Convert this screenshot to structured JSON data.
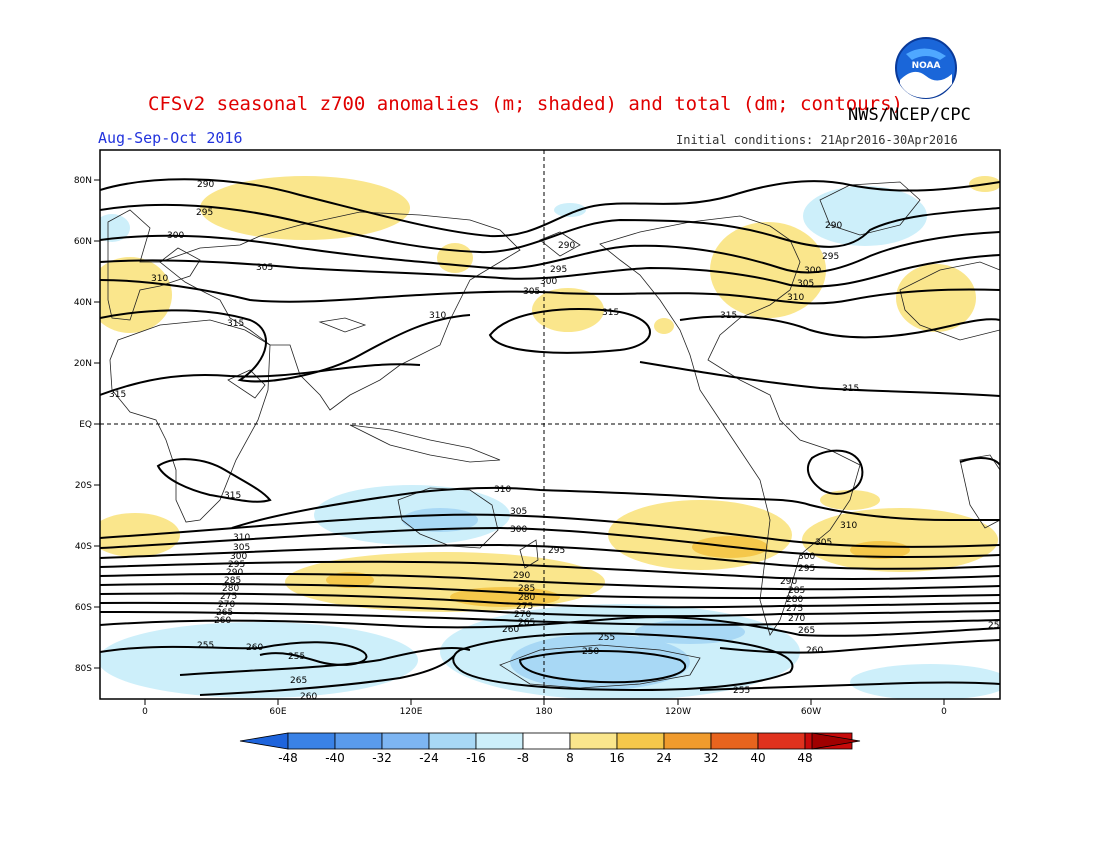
{
  "header": {
    "title": "CFSv2 seasonal z700 anomalies (m; shaded) and total (dm; contours)",
    "period": "Aug-Sep-Oct 2016",
    "agency": "NWS/NCEP/CPC",
    "initial_conditions": "Initial conditions: 21Apr2016-30Apr2016",
    "logo_text": "NOAA"
  },
  "axes": {
    "x_ticks": [
      "0",
      "60E",
      "120E",
      "180",
      "120W",
      "60W",
      "0"
    ],
    "y_ticks": [
      "80N",
      "60N",
      "40N",
      "20N",
      "EQ",
      "20S",
      "40S",
      "60S",
      "80S"
    ]
  },
  "colorbar": {
    "labels": [
      "-48",
      "-40",
      "-32",
      "-24",
      "-16",
      "-8",
      "8",
      "16",
      "24",
      "32",
      "40",
      "48"
    ],
    "colors": [
      "#1e64dc",
      "#3a82e6",
      "#5a9bec",
      "#7db5f2",
      "#a8d8f5",
      "#cdeffa",
      "#ffffff",
      "#fae68c",
      "#f5c84b",
      "#f09b2d",
      "#e8641e",
      "#e0321e",
      "#c80a0a",
      "#a00000"
    ]
  },
  "contour_labels": [
    {
      "text": "290"
    },
    {
      "text": "295"
    },
    {
      "text": "300"
    },
    {
      "text": "305"
    },
    {
      "text": "310"
    },
    {
      "text": "315"
    },
    {
      "text": "315"
    },
    {
      "text": "310"
    },
    {
      "text": "305"
    },
    {
      "text": "300"
    },
    {
      "text": "290"
    },
    {
      "text": "295"
    },
    {
      "text": "315"
    },
    {
      "text": "315"
    },
    {
      "text": "290"
    },
    {
      "text": "295"
    },
    {
      "text": "300"
    },
    {
      "text": "305"
    },
    {
      "text": "310"
    },
    {
      "text": "315"
    },
    {
      "text": "310"
    },
    {
      "text": "305"
    },
    {
      "text": "300"
    },
    {
      "text": "295"
    },
    {
      "text": "290"
    },
    {
      "text": "285"
    },
    {
      "text": "280"
    },
    {
      "text": "275"
    },
    {
      "text": "270"
    },
    {
      "text": "265"
    },
    {
      "text": "260"
    },
    {
      "text": "315"
    },
    {
      "text": "310"
    },
    {
      "text": "305"
    },
    {
      "text": "300"
    },
    {
      "text": "295"
    },
    {
      "text": "290"
    },
    {
      "text": "285"
    },
    {
      "text": "280"
    },
    {
      "text": "275"
    },
    {
      "text": "270"
    },
    {
      "text": "265"
    },
    {
      "text": "260"
    },
    {
      "text": "255"
    },
    {
      "text": "250"
    },
    {
      "text": "310"
    },
    {
      "text": "305"
    },
    {
      "text": "300"
    },
    {
      "text": "295"
    },
    {
      "text": "290"
    },
    {
      "text": "285"
    },
    {
      "text": "280"
    },
    {
      "text": "275"
    },
    {
      "text": "270"
    },
    {
      "text": "265"
    },
    {
      "text": "260"
    },
    {
      "text": "255"
    },
    {
      "text": "260"
    },
    {
      "text": "255"
    },
    {
      "text": "265"
    },
    {
      "text": "260"
    },
    {
      "text": "255"
    },
    {
      "text": "25"
    }
  ]
}
